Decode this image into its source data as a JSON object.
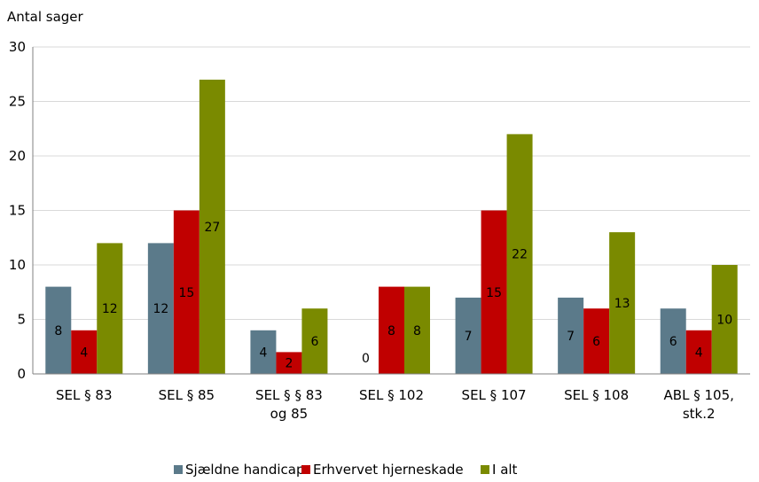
{
  "chart_data": {
    "type": "bar",
    "ylabel": "Antal sager",
    "ylim": [
      0,
      30
    ],
    "yticks": [
      0,
      5,
      10,
      15,
      20,
      25,
      30
    ],
    "grid": true,
    "legend_position": "bottom",
    "categories": [
      [
        "SEL § 83"
      ],
      [
        "SEL § 85"
      ],
      [
        "SEL § § 83",
        "og  85"
      ],
      [
        "SEL § 102"
      ],
      [
        "SEL § 107"
      ],
      [
        "SEL § 108"
      ],
      [
        "ABL § 105,",
        "stk.2"
      ]
    ],
    "series": [
      {
        "name": "Sjældne handicap",
        "color": "#5b7a8a",
        "values": [
          8,
          12,
          4,
          0,
          7,
          7,
          6
        ]
      },
      {
        "name": "Erhvervet hjerneskade",
        "color": "#c00000",
        "values": [
          4,
          15,
          2,
          8,
          15,
          6,
          4
        ]
      },
      {
        "name": "I alt",
        "color": "#7a8a00",
        "values": [
          12,
          27,
          6,
          8,
          22,
          13,
          10
        ]
      }
    ]
  }
}
